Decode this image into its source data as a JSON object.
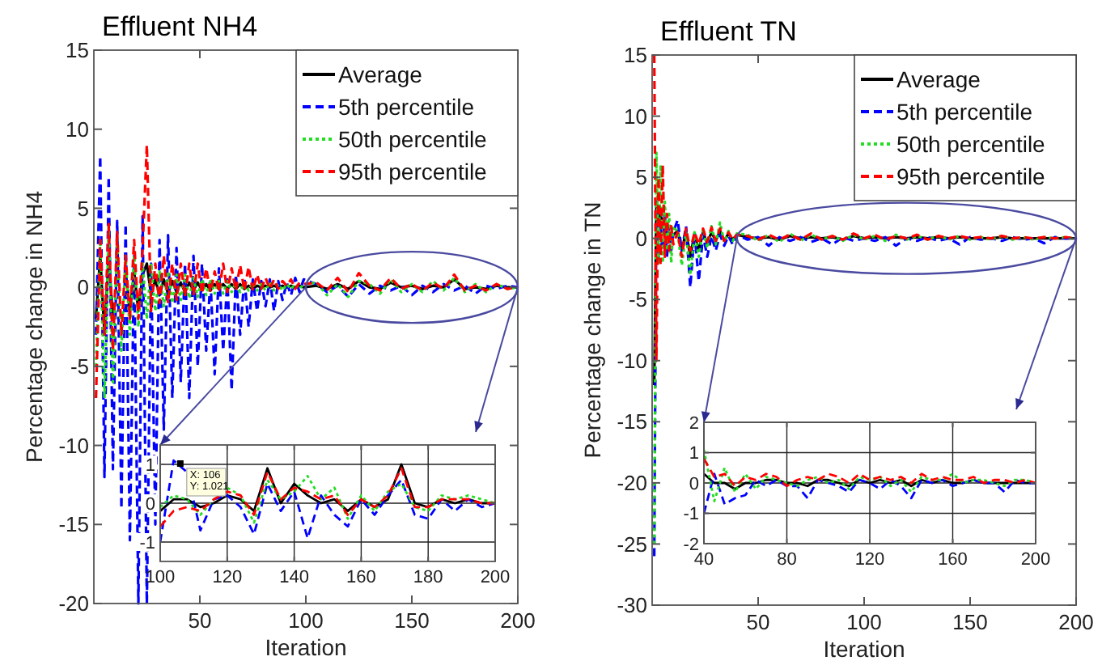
{
  "chart_data": [
    {
      "type": "line",
      "title": "Effluent NH4",
      "xlabel": "Iteration",
      "ylabel": "Percentage change in NH4",
      "xlim": [
        0,
        200
      ],
      "xticks": [
        50,
        100,
        150,
        200
      ],
      "ylim": [
        -20,
        15
      ],
      "yticks": [
        -20,
        -15,
        -10,
        -5,
        0,
        5,
        10,
        15
      ],
      "legend": "top right",
      "grid": false,
      "x": [
        1,
        3,
        5,
        7,
        9,
        11,
        13,
        15,
        17,
        19,
        21,
        23,
        25,
        27,
        29,
        31,
        33,
        35,
        37,
        39,
        41,
        43,
        45,
        47,
        49,
        51,
        53,
        55,
        57,
        59,
        61,
        63,
        65,
        67,
        69,
        71,
        73,
        75,
        77,
        79,
        81,
        83,
        85,
        87,
        89,
        91,
        93,
        95,
        97,
        99,
        105,
        110,
        115,
        120,
        125,
        130,
        135,
        140,
        145,
        150,
        155,
        160,
        165,
        170,
        175,
        180,
        185,
        190,
        195,
        200
      ],
      "series": [
        {
          "name": "Average",
          "color": "#000000",
          "line_style": "solid",
          "values": [
            -2,
            2,
            -3,
            2,
            -2,
            null,
            null,
            1,
            -1.5,
            1,
            -1.5,
            0.8,
            1.5,
            -0.5,
            0.5,
            -0.5,
            0.5,
            -0.4,
            0.4,
            -0.3,
            0.3,
            -0.3,
            0.3,
            -0.2,
            0.3,
            -0.2,
            0.2,
            -0.2,
            0.2,
            -0.1,
            0.2,
            -0.1,
            0.2,
            -0.1,
            0.2,
            -0.1,
            0.1,
            -0.1,
            0.1,
            0,
            0.1,
            0,
            0.1,
            0,
            0.1,
            0,
            0.1,
            0,
            0.1,
            0,
            0.1,
            -0.1,
            0.2,
            -0.1,
            0.4,
            0,
            -0.1,
            0.3,
            0,
            0.1,
            -0.1,
            0.1,
            0,
            0.5,
            -0.1,
            0,
            -0.1,
            0.1,
            0,
            0
          ]
        },
        {
          "name": "5th percentile",
          "color": "#0000ff",
          "line_style": "dashed",
          "values": [
            -3,
            8.3,
            -12,
            7,
            -11.5,
            4.2,
            -14,
            4,
            -16,
            2,
            -20,
            4.5,
            -20,
            1.5,
            -15,
            3,
            -9,
            3.3,
            -7,
            2.5,
            -6,
            1.5,
            -7,
            2,
            -5,
            1.5,
            -4,
            0.5,
            -5.5,
            1.2,
            -4,
            0.5,
            -6.5,
            0.8,
            -3,
            0.6,
            -2.5,
            0.5,
            -1.5,
            0.4,
            -1.2,
            0.5,
            -1.5,
            0.4,
            -0.8,
            0.3,
            -0.5,
            0.6,
            -0.3,
            0.5,
            0.2,
            -0.3,
            0.1,
            -0.6,
            0.2,
            -0.4,
            0.1,
            -0.2,
            0.1,
            -0.5,
            0.1,
            -0.3,
            0.2,
            -0.2,
            0.1,
            -0.4,
            0.1,
            -0.1,
            0.1,
            0
          ]
        },
        {
          "name": "50th percentile",
          "color": "#22dd22",
          "line_style": "dotted",
          "values": [
            -5,
            3,
            -7,
            4,
            -6,
            3,
            -4,
            2,
            -3,
            2,
            -2.5,
            1.5,
            -2,
            1.5,
            -1.5,
            1,
            -1.2,
            1,
            -1,
            0.8,
            -0.8,
            0.8,
            -0.7,
            0.6,
            -0.6,
            0.5,
            -0.5,
            0.5,
            -0.4,
            0.4,
            -0.4,
            0.4,
            -0.3,
            0.3,
            -0.3,
            0.3,
            -0.2,
            0.3,
            -0.2,
            0.2,
            -0.2,
            0.3,
            -0.2,
            0.2,
            -0.2,
            0.2,
            -0.1,
            0.2,
            -0.1,
            0.2,
            0.3,
            -0.5,
            0.2,
            -0.6,
            0.4,
            0.2,
            -0.4,
            0.5,
            -0.3,
            0.2,
            -0.3,
            0.4,
            -0.2,
            0.6,
            -0.3,
            0.2,
            -0.3,
            0.2,
            -0.1,
            0
          ]
        },
        {
          "name": "95th percentile",
          "color": "#ff0000",
          "line_style": "dashed",
          "values": [
            -7,
            3,
            -3,
            4,
            -4,
            3.5,
            -3,
            2,
            -2,
            3,
            -2,
            2.5,
            9,
            -1.5,
            1.5,
            -1,
            2,
            -1,
            1.5,
            -0.8,
            1.5,
            -0.6,
            1.5,
            -0.5,
            1.5,
            -0.4,
            1.2,
            -0.3,
            1,
            -0.3,
            1.5,
            -0.3,
            1.2,
            -0.2,
            1.4,
            -0.2,
            1.3,
            -0.2,
            0.8,
            -0.1,
            0.6,
            -0.1,
            0.5,
            -0.1,
            0.4,
            0.1,
            0.5,
            -0.1,
            0.3,
            0.2,
            0.3,
            -0.2,
            0.6,
            -0.3,
            0.9,
            0.1,
            -0.2,
            0.6,
            -0.1,
            0.2,
            -0.2,
            0.3,
            -0.1,
            0.8,
            -0.2,
            0.1,
            -0.2,
            0.2,
            -0.1,
            0
          ]
        }
      ]
    },
    {
      "type": "line",
      "xlim": [
        100,
        200
      ],
      "xticks": [
        100,
        120,
        140,
        160,
        180,
        200
      ],
      "ylim": [
        -1.5,
        1.5
      ],
      "yticks": [
        -1,
        0,
        1
      ],
      "grid": true,
      "legend": false,
      "annotations": [
        {
          "text": "X: 106\nY: 1.021",
          "x": 106,
          "y": 1.021
        }
      ],
      "x": [
        100,
        104,
        108,
        112,
        116,
        120,
        124,
        128,
        132,
        136,
        140,
        144,
        148,
        152,
        156,
        160,
        164,
        168,
        172,
        176,
        180,
        184,
        188,
        192,
        196,
        200
      ],
      "series": [
        {
          "color": "#000000",
          "line_style": "solid",
          "values": [
            -0.2,
            0.1,
            0.1,
            -0.1,
            0,
            0.2,
            0.1,
            -0.2,
            0.9,
            0,
            0.5,
            0.2,
            0,
            0.1,
            -0.2,
            0.1,
            -0.1,
            0.1,
            1,
            0,
            -0.1,
            0.1,
            0,
            0.1,
            0,
            0
          ]
        },
        {
          "color": "#0000ff",
          "line_style": "dashed",
          "values": [
            -1,
            1.1,
            0.8,
            -0.7,
            0.1,
            0.2,
            -0.1,
            -0.8,
            0.5,
            -0.2,
            0.3,
            -0.9,
            0.2,
            -0.3,
            -0.6,
            0.1,
            -0.3,
            0.2,
            0.6,
            -0.3,
            -0.4,
            0.1,
            -0.2,
            0.1,
            -0.1,
            0
          ]
        },
        {
          "color": "#22dd22",
          "line_style": "dotted",
          "values": [
            -0.1,
            0.2,
            0.1,
            -0.3,
            0.1,
            0.4,
            0.2,
            -0.5,
            0.6,
            0.1,
            0.3,
            0.7,
            0.1,
            0.4,
            -0.4,
            0.2,
            -0.2,
            0.3,
            0.5,
            -0.1,
            -0.2,
            0.2,
            0.1,
            0.2,
            0.1,
            0
          ]
        },
        {
          "color": "#ff0000",
          "line_style": "dashed",
          "values": [
            -0.6,
            -0.2,
            -0.1,
            -0.2,
            0.1,
            0.3,
            0.2,
            -0.3,
            0.8,
            0.1,
            0.4,
            0.3,
            0.1,
            0.2,
            -0.3,
            0.1,
            -0.1,
            0.2,
            0.9,
            -0.1,
            -0.1,
            0.1,
            0.1,
            0.1,
            0,
            0
          ]
        }
      ]
    },
    {
      "type": "line",
      "title": "Effluent TN",
      "xlabel": "Iteration",
      "ylabel": "Percentage change in TN",
      "xlim": [
        0,
        200
      ],
      "xticks": [
        50,
        100,
        150,
        200
      ],
      "ylim": [
        -30,
        15
      ],
      "yticks": [
        -30,
        -25,
        -20,
        -15,
        -10,
        -5,
        0,
        5,
        10,
        15
      ],
      "legend": "top right",
      "grid": false,
      "x": [
        1,
        2,
        3,
        4,
        5,
        6,
        7,
        8,
        9,
        10,
        12,
        14,
        16,
        18,
        20,
        22,
        24,
        26,
        28,
        30,
        32,
        34,
        36,
        38,
        40,
        45,
        50,
        55,
        60,
        65,
        70,
        75,
        80,
        85,
        90,
        95,
        100,
        105,
        110,
        115,
        120,
        125,
        130,
        135,
        140,
        145,
        150,
        155,
        160,
        165,
        170,
        175,
        180,
        185,
        190,
        195,
        200
      ],
      "series": [
        {
          "name": "Average",
          "color": "#000000",
          "line_style": "solid",
          "values": [
            -12,
            3,
            1,
            2,
            1,
            1,
            0.3,
            0.5,
            -0.3,
            0.3,
            0.6,
            -1,
            0.6,
            -1.5,
            0.4,
            -1,
            0.5,
            -0.4,
            0.5,
            -0.2,
            0.6,
            -0.2,
            0.4,
            -0.1,
            0.3,
            0.1,
            0,
            0.1,
            -0.1,
            0.2,
            0,
            0.1,
            0,
            0.1,
            -0.1,
            0.2,
            0,
            0.1,
            0,
            0.1,
            0,
            0.1,
            0,
            0.1,
            0,
            0.1,
            0,
            0,
            0,
            0.1,
            0,
            0,
            0,
            0,
            0,
            0,
            0
          ]
        },
        {
          "name": "5th percentile",
          "color": "#0000ff",
          "line_style": "dashed",
          "values": [
            -26,
            3,
            -2,
            1,
            -1,
            2,
            -1.5,
            1,
            -1,
            0.5,
            1.5,
            -1,
            1,
            -4,
            0.5,
            -3.5,
            0.3,
            -1.5,
            0.2,
            -1,
            0.3,
            -0.6,
            0.2,
            -0.5,
            0.3,
            -0.1,
            0.1,
            -0.6,
            0.1,
            -0.2,
            0.1,
            -0.3,
            0,
            -0.5,
            0.1,
            -0.2,
            0,
            -0.2,
            0.1,
            -0.6,
            0,
            -0.2,
            0.1,
            -0.2,
            0,
            -0.5,
            0.1,
            -0.1,
            0,
            -0.2,
            0.1,
            -0.1,
            0,
            -0.4,
            0.1,
            0,
            0
          ]
        },
        {
          "name": "50th percentile",
          "color": "#22dd22",
          "line_style": "dotted",
          "values": [
            -25,
            7,
            -2,
            6,
            -2,
            3,
            -1,
            2,
            -2,
            1,
            0.5,
            -2.2,
            0.5,
            -3,
            0.5,
            -1.5,
            0.8,
            -0.8,
            1,
            -0.5,
            1.3,
            -0.3,
            0.6,
            -0.2,
            0.4,
            0.3,
            -0.2,
            0.3,
            -0.3,
            0.4,
            -0.2,
            0.3,
            -0.1,
            0.2,
            -0.2,
            0.3,
            -0.1,
            0.2,
            -0.2,
            0.3,
            -0.1,
            0.2,
            -0.1,
            0.2,
            -0.1,
            0.2,
            -0.1,
            0.1,
            -0.1,
            0.2,
            -0.1,
            0.1,
            -0.1,
            0.1,
            0,
            0.1,
            0
          ]
        },
        {
          "name": "95th percentile",
          "color": "#ff0000",
          "line_style": "dashed",
          "values": [
            15,
            -10,
            5,
            -2,
            6,
            -1.5,
            2,
            -1,
            1,
            -0.5,
            0.5,
            -1.5,
            0.8,
            -1,
            0.5,
            -0.5,
            0.8,
            -0.3,
            0.9,
            -0.2,
            0.8,
            -0.2,
            0.5,
            -0.1,
            0.3,
            0.2,
            -0.1,
            0.3,
            -0.1,
            0.3,
            -0.1,
            0.4,
            -0.1,
            0.2,
            -0.1,
            0.4,
            0,
            0.3,
            -0.1,
            0.2,
            0,
            0.3,
            -0.1,
            0.2,
            0,
            0.2,
            0,
            0.1,
            0,
            0.2,
            0,
            0.1,
            0,
            0.1,
            0,
            0.1,
            0
          ]
        }
      ]
    },
    {
      "type": "line",
      "xlim": [
        40,
        200
      ],
      "xticks": [
        40,
        80,
        120,
        160,
        200
      ],
      "ylim": [
        -2,
        2
      ],
      "yticks": [
        -2,
        -1,
        0,
        1,
        2
      ],
      "grid": true,
      "legend": false,
      "x": [
        40,
        45,
        50,
        55,
        60,
        65,
        70,
        75,
        80,
        85,
        90,
        95,
        100,
        105,
        110,
        115,
        120,
        125,
        130,
        135,
        140,
        145,
        150,
        155,
        160,
        165,
        170,
        175,
        180,
        185,
        190,
        195,
        200
      ],
      "series": [
        {
          "color": "#000000",
          "line_style": "solid",
          "values": [
            0.3,
            0,
            0,
            -0.2,
            0,
            0,
            0.1,
            0.1,
            0,
            0,
            -0.1,
            0.1,
            0.1,
            0,
            -0.1,
            0.1,
            0,
            0.1,
            0,
            0.1,
            -0.1,
            0.1,
            0,
            0.1,
            0,
            0,
            0.1,
            0,
            0,
            0,
            0,
            0,
            0
          ]
        },
        {
          "color": "#0000ff",
          "line_style": "dashed",
          "values": [
            -1,
            0.3,
            -0.7,
            -0.5,
            -0.4,
            0.1,
            -0.1,
            0.1,
            -0.1,
            -0.1,
            -0.5,
            0.1,
            0,
            -0.1,
            -0.3,
            0.1,
            0,
            -0.2,
            0.1,
            -0.1,
            -0.5,
            0.1,
            0,
            0.1,
            -0.1,
            0,
            0.1,
            0,
            0,
            -0.3,
            0.1,
            0,
            0
          ]
        },
        {
          "color": "#22dd22",
          "line_style": "dotted",
          "values": [
            1.1,
            -0.6,
            0.5,
            -0.3,
            0.3,
            -0.2,
            0.2,
            0.1,
            0,
            -0.1,
            0.1,
            0.2,
            0,
            0.1,
            -0.2,
            0.2,
            0.1,
            0.2,
            -0.1,
            0.1,
            -0.3,
            0.2,
            0.1,
            0.1,
            0.3,
            0,
            0.1,
            0.1,
            0,
            -0.1,
            0.1,
            0.1,
            0
          ]
        },
        {
          "color": "#ff0000",
          "line_style": "dashed",
          "values": [
            0.8,
            0.2,
            0.3,
            -0.1,
            0.2,
            0.1,
            0.3,
            0.2,
            -0.1,
            0.1,
            0.2,
            0.1,
            0.3,
            0.2,
            0,
            0.3,
            0.1,
            0.2,
            0.1,
            0.2,
            0,
            0.3,
            0.1,
            0.2,
            0.1,
            0.1,
            0.2,
            0,
            0.1,
            0.1,
            0,
            0.1,
            0
          ]
        }
      ]
    }
  ]
}
